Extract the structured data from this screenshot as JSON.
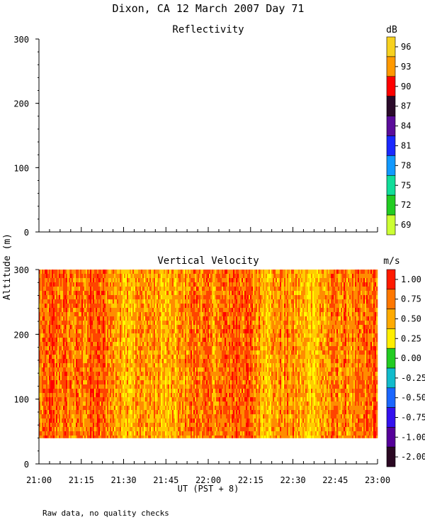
{
  "title": "Dixon, CA 12 March 2007  Day  71",
  "ylabel": "Altitude (m)",
  "xlabel": "UT  (PST + 8)",
  "footnote": "Raw data, no quality checks",
  "colors": {
    "velocity_field": [
      "#ffff00",
      "#ffcc00",
      "#ff8c00",
      "#ff4400",
      "#ff0000"
    ]
  },
  "chart_data": [
    {
      "type": "heatmap",
      "title": "Reflectivity",
      "colorbar_label": "dB",
      "colorbar_ticks": [
        "96",
        "93",
        "90",
        "87",
        "84",
        "81",
        "78",
        "75",
        "72",
        "69"
      ],
      "colorbar_colors": [
        "#f7d11f",
        "#ff9900",
        "#ff0000",
        "#2a0a2a",
        "#5a0c9a",
        "#1a28ff",
        "#1199ff",
        "#11dd99",
        "#22cc22",
        "#ccff33"
      ],
      "y_ticks": [
        "300",
        "200",
        "100",
        "0"
      ],
      "ylim": [
        0,
        300
      ],
      "data": "no data plotted"
    },
    {
      "type": "heatmap",
      "title": "Vertical Velocity",
      "colorbar_label": "m/s",
      "colorbar_ticks": [
        "1.00",
        "0.75",
        "0.50",
        "0.25",
        "0.00",
        "-0.25",
        "-0.50",
        "-0.75",
        "-1.00",
        "-2.00"
      ],
      "colorbar_colors": [
        "#ff1a00",
        "#ff7700",
        "#ffaa00",
        "#ffee00",
        "#22cc22",
        "#11bbcc",
        "#1a66ff",
        "#3311ee",
        "#550099",
        "#2a0822"
      ],
      "y_ticks": [
        "300",
        "200",
        "100",
        "0"
      ],
      "x_ticks": [
        "21:00",
        "21:15",
        "21:30",
        "21:45",
        "22:00",
        "22:15",
        "22:30",
        "22:45",
        "23:00"
      ],
      "xlim": [
        "21:00",
        "23:00"
      ],
      "ylim": [
        0,
        300
      ],
      "data_altitude_range": [
        40,
        300
      ],
      "value_range": [
        0.25,
        1.0
      ]
    }
  ]
}
